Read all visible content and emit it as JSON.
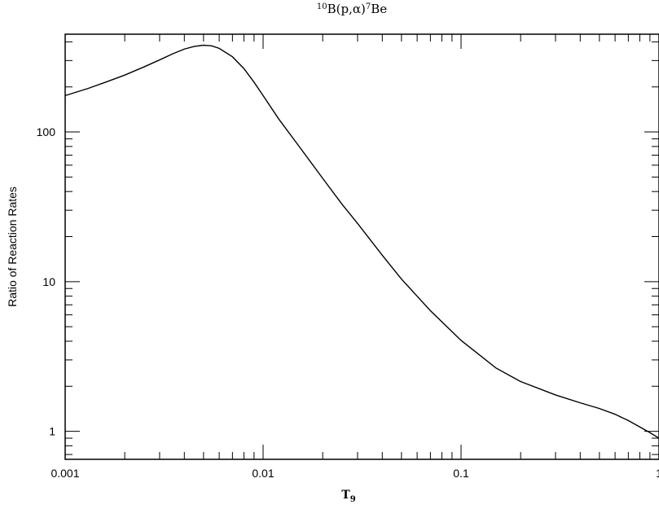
{
  "chart_data": {
    "type": "line",
    "title": {
      "isotope_mass": "10",
      "target": "B(p,",
      "particle": "α",
      "product_pre": ")",
      "product_mass": "7",
      "product": "Be"
    },
    "xlabel": {
      "main": "T",
      "sub": "9"
    },
    "ylabel": "Ratio of Reaction Rates",
    "x_scale": "log",
    "y_scale": "log",
    "xlim": [
      0.001,
      1.0
    ],
    "ylim": [
      0.65,
      450
    ],
    "x_ticks": [
      {
        "value": 0.001,
        "label": "0.001"
      },
      {
        "value": 0.01,
        "label": "0.01"
      },
      {
        "value": 0.1,
        "label": "0.1"
      },
      {
        "value": 1,
        "label": "1"
      }
    ],
    "y_ticks": [
      {
        "value": 1,
        "label": "1"
      },
      {
        "value": 10,
        "label": "10"
      },
      {
        "value": 100,
        "label": "100"
      }
    ],
    "grid": false,
    "series": [
      {
        "x": [
          0.001,
          0.0013,
          0.0016,
          0.002,
          0.0025,
          0.003,
          0.0035,
          0.004,
          0.0045,
          0.005,
          0.0055,
          0.006,
          0.007,
          0.008,
          0.009,
          0.01,
          0.012,
          0.015,
          0.02,
          0.025,
          0.03,
          0.04,
          0.05,
          0.07,
          0.1,
          0.15,
          0.2,
          0.3,
          0.4,
          0.5,
          0.6,
          0.7,
          0.8,
          0.9,
          1.0
        ],
        "y": [
          175,
          195,
          215,
          240,
          272,
          303,
          333,
          358,
          373,
          380,
          376,
          362,
          318,
          265,
          215,
          175,
          122,
          82,
          49,
          33,
          24.5,
          15,
          10.4,
          6.4,
          4.05,
          2.65,
          2.15,
          1.75,
          1.55,
          1.42,
          1.3,
          1.18,
          1.07,
          0.98,
          0.9
        ]
      }
    ]
  }
}
